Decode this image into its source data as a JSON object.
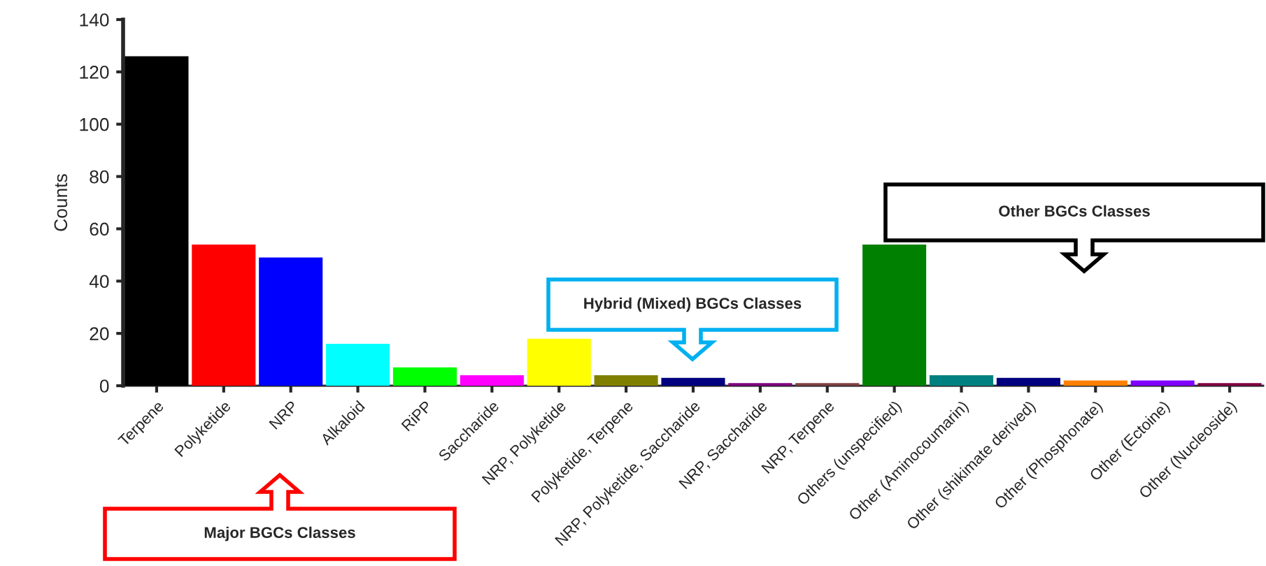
{
  "chart_data": {
    "type": "bar",
    "ylabel": "Counts",
    "categories": [
      "Terpene",
      "Polyketide",
      "NRP",
      "Alkaloid",
      "RiPP",
      "Saccharide",
      "NRP, Polyketide",
      "Polyketide, Terpene",
      "NRP, Polyketide, Saccharide",
      "NRP, Saccharide",
      "NRP, Terpene",
      "Others (unspecified)",
      "Other (Aminocoumarin)",
      "Other (shikimate derived)",
      "Other (Phosphonate)",
      "Other (Ectoine)",
      "Other (Nucleoside)"
    ],
    "values": [
      126,
      54,
      49,
      16,
      7,
      4,
      18,
      4,
      3,
      1,
      1,
      54,
      4,
      3,
      2,
      2,
      1
    ],
    "colors": [
      "#000000",
      "#ff0000",
      "#0000ff",
      "#00ffff",
      "#00ff00",
      "#ff00ff",
      "#ffff00",
      "#808000",
      "#000080",
      "#800080",
      "#804040",
      "#008000",
      "#008080",
      "#000080",
      "#ff8000",
      "#8000ff",
      "#800040"
    ],
    "ylim": [
      0,
      140
    ],
    "yticks": [
      0,
      20,
      40,
      60,
      80,
      100,
      120,
      140
    ],
    "annotations": [
      "Major BGCs Classes",
      "Hybrid (Mixed) BGCs Classes",
      "Other BGCs Classes"
    ]
  }
}
